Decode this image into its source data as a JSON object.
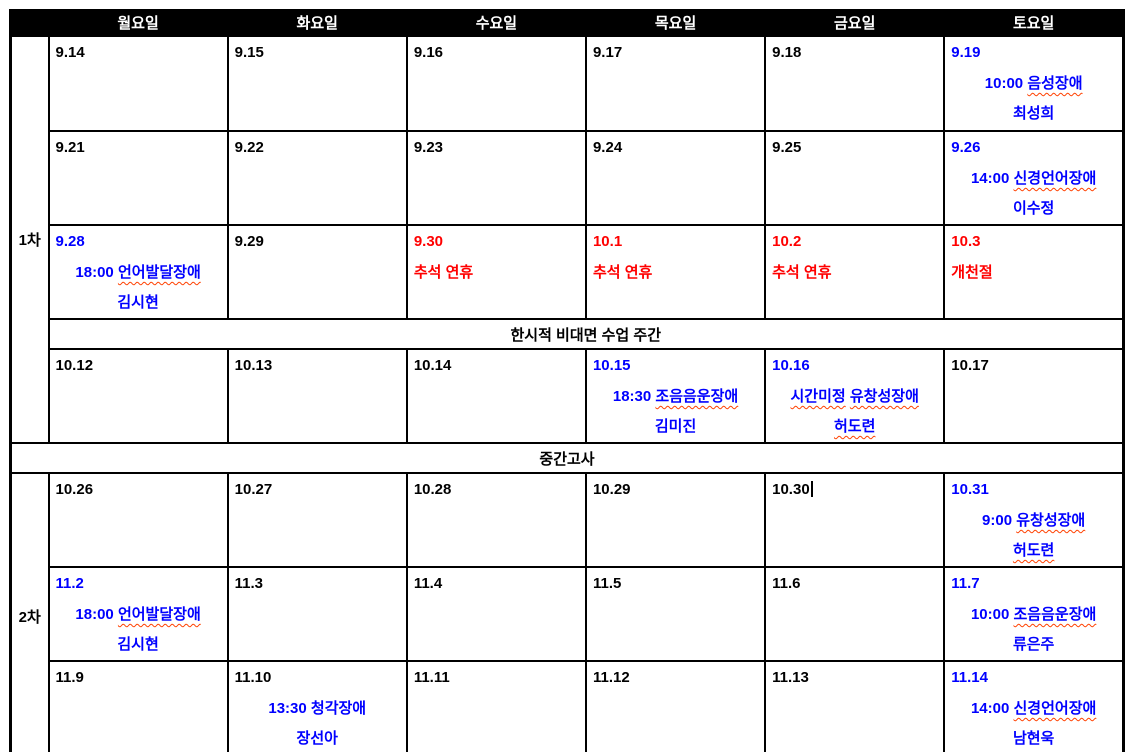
{
  "colors": {
    "event": "#0000ff",
    "holiday": "#ff0000",
    "default": "#000000",
    "header_bg": "#000000",
    "header_text": "#ffffff",
    "squiggle": "#ff4000"
  },
  "header": {
    "days": [
      "월요일",
      "화요일",
      "수요일",
      "목요일",
      "금요일",
      "토요일"
    ]
  },
  "banners": {
    "remote_week": "한시적 비대면 수업 주간",
    "midterm": "중간고사"
  },
  "sections": [
    {
      "label": "1차",
      "rows": [
        {
          "type": "week",
          "cells": [
            {
              "date": "9.14"
            },
            {
              "date": "9.15"
            },
            {
              "date": "9.16"
            },
            {
              "date": "9.17"
            },
            {
              "date": "9.18"
            },
            {
              "date": "9.19",
              "date_color": "event",
              "lines": [
                {
                  "text": "10:00 음성장애",
                  "color": "event",
                  "align": "center",
                  "squiggles": [
                    "음성장애"
                  ]
                },
                {
                  "text": "최성희",
                  "color": "event",
                  "align": "center"
                }
              ]
            }
          ]
        },
        {
          "type": "week",
          "cells": [
            {
              "date": "9.21"
            },
            {
              "date": "9.22"
            },
            {
              "date": "9.23"
            },
            {
              "date": "9.24"
            },
            {
              "date": "9.25"
            },
            {
              "date": "9.26",
              "date_color": "event",
              "lines": [
                {
                  "text": "14:00 신경언어장애",
                  "color": "event",
                  "align": "center",
                  "squiggles": [
                    "신경언어장애"
                  ]
                },
                {
                  "text": "이수정",
                  "color": "event",
                  "align": "center"
                }
              ]
            }
          ]
        },
        {
          "type": "week",
          "cells": [
            {
              "date": "9.28",
              "date_color": "event",
              "lines": [
                {
                  "text": "18:00 언어발달장애",
                  "color": "event",
                  "align": "center",
                  "squiggles": [
                    "언어발달장애"
                  ]
                },
                {
                  "text": "김시현",
                  "color": "event",
                  "align": "center"
                }
              ]
            },
            {
              "date": "9.29"
            },
            {
              "date": "9.30",
              "date_color": "holiday",
              "lines": [
                {
                  "text": "추석 연휴",
                  "color": "holiday",
                  "align": "left"
                }
              ]
            },
            {
              "date": "10.1",
              "date_color": "holiday",
              "lines": [
                {
                  "text": "추석 연휴",
                  "color": "holiday",
                  "align": "left"
                }
              ]
            },
            {
              "date": "10.2",
              "date_color": "holiday",
              "lines": [
                {
                  "text": "추석 연휴",
                  "color": "holiday",
                  "align": "left"
                }
              ]
            },
            {
              "date": "10.3",
              "date_color": "holiday",
              "lines": [
                {
                  "text": "개천절",
                  "color": "holiday",
                  "align": "left"
                }
              ]
            }
          ]
        },
        {
          "type": "banner",
          "text_key": "remote_week"
        },
        {
          "type": "week",
          "cells": [
            {
              "date": "10.12"
            },
            {
              "date": "10.13"
            },
            {
              "date": "10.14"
            },
            {
              "date": "10.15",
              "date_color": "event",
              "lines": [
                {
                  "text": "18:30 조음음운장애",
                  "color": "event",
                  "align": "center",
                  "squiggles": [
                    "조음음운장애"
                  ]
                },
                {
                  "text": "김미진",
                  "color": "event",
                  "align": "center"
                }
              ]
            },
            {
              "date": "10.16",
              "date_color": "event",
              "lines": [
                {
                  "text": "시간미정 유창성장애",
                  "color": "event",
                  "align": "center",
                  "squiggles": [
                    "시간미정",
                    "유창성장애"
                  ]
                },
                {
                  "text": "허도련",
                  "color": "event",
                  "align": "center",
                  "squiggles": [
                    "허도련"
                  ]
                }
              ]
            },
            {
              "date": "10.17"
            }
          ]
        }
      ]
    },
    {
      "label": "2차",
      "rows": [
        {
          "type": "week",
          "cells": [
            {
              "date": "10.26"
            },
            {
              "date": "10.27"
            },
            {
              "date": "10.28"
            },
            {
              "date": "10.29"
            },
            {
              "date": "10.30",
              "caret": true
            },
            {
              "date": "10.31",
              "date_color": "event",
              "lines": [
                {
                  "text": "9:00 유창성장애",
                  "color": "event",
                  "align": "center",
                  "squiggles": [
                    "유창성장애"
                  ]
                },
                {
                  "text": "허도련",
                  "color": "event",
                  "align": "center",
                  "squiggles": [
                    "허도련"
                  ]
                }
              ]
            }
          ]
        },
        {
          "type": "week",
          "cells": [
            {
              "date": "11.2",
              "date_color": "event",
              "lines": [
                {
                  "text": "18:00 언어발달장애",
                  "color": "event",
                  "align": "center",
                  "squiggles": [
                    "언어발달장애"
                  ]
                },
                {
                  "text": "김시현",
                  "color": "event",
                  "align": "center"
                }
              ]
            },
            {
              "date": "11.3"
            },
            {
              "date": "11.4"
            },
            {
              "date": "11.5"
            },
            {
              "date": "11.6"
            },
            {
              "date": "11.7",
              "date_color": "event",
              "lines": [
                {
                  "text": "10:00 조음음운장애",
                  "color": "event",
                  "align": "center",
                  "squiggles": [
                    "조음음운장애"
                  ]
                },
                {
                  "text": "류은주",
                  "color": "event",
                  "align": "center"
                }
              ]
            }
          ]
        },
        {
          "type": "week",
          "cells": [
            {
              "date": "11.9"
            },
            {
              "date": "11.10",
              "lines": [
                {
                  "text": "13:30 청각장애",
                  "color": "event",
                  "align": "center"
                },
                {
                  "text": "장선아",
                  "color": "event",
                  "align": "center"
                }
              ]
            },
            {
              "date": "11.11"
            },
            {
              "date": "11.12"
            },
            {
              "date": "11.13"
            },
            {
              "date": "11.14",
              "date_color": "event",
              "lines": [
                {
                  "text": "14:00 신경언어장애",
                  "color": "event",
                  "align": "center",
                  "squiggles": [
                    "신경언어장애"
                  ]
                },
                {
                  "text": "남현욱",
                  "color": "event",
                  "align": "center"
                }
              ]
            }
          ]
        }
      ]
    }
  ]
}
